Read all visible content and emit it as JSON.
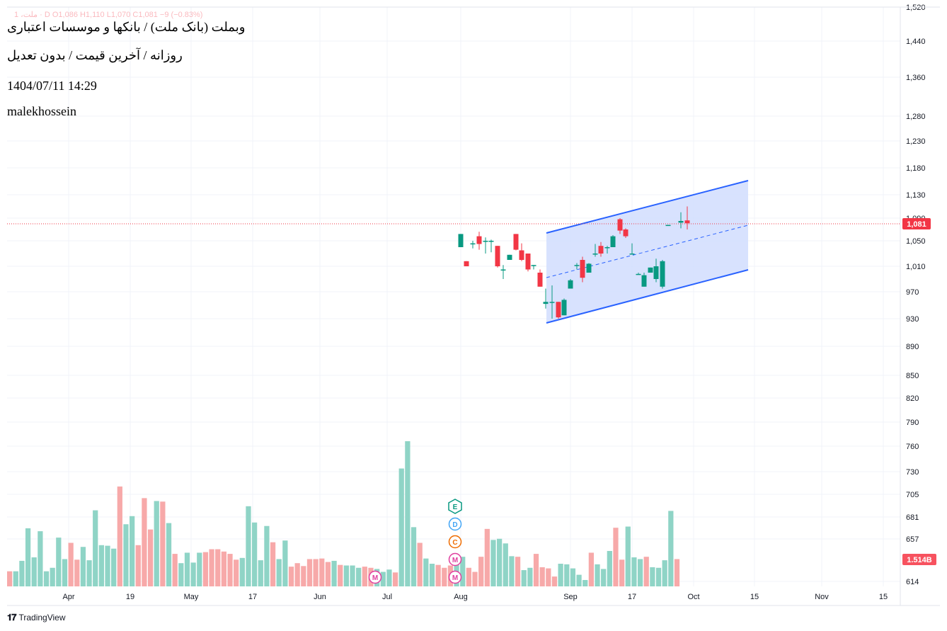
{
  "ohlc_line": "ملت، 1 · D  O1,086  H1,110  L1,070  C1,081  −9 (−0.83%)",
  "info": {
    "title": "وبملت (بانک ملت) / بانکها و موسسات اعتباری",
    "subtitle": "روزانه / آخرین قیمت / بدون تعدیل",
    "datetime": "1404/07/11 14:29",
    "author": "malekhossein"
  },
  "branding": {
    "logo": "TradingView"
  },
  "colors": {
    "up": "#089981",
    "down": "#f23645",
    "vol_up": "#8fd4c6",
    "vol_down": "#f7a9a9",
    "channel_line": "#2962ff",
    "channel_fill": "#d1ddfe",
    "grid": "#f0f3fa"
  },
  "chart_data": {
    "type": "candlestick",
    "x_tick_labels": [
      "Apr",
      "19",
      "May",
      "17",
      "Jun",
      "Jul",
      "Aug",
      "Sep",
      "17",
      "Oct",
      "15",
      "Nov",
      "15"
    ],
    "y_ticks": [
      "1,520",
      "1,440",
      "1,360",
      "1,280",
      "1,230",
      "1,180",
      "1,130",
      "1,090",
      "1,050",
      "1,010",
      "970",
      "930",
      "890",
      "850",
      "820",
      "790",
      "760",
      "730",
      "705",
      "681",
      "657",
      "614"
    ],
    "y_scale": "log",
    "last_price": 1081,
    "last_price_label": "1,081",
    "volume_label": "1.514B",
    "candles": [
      {
        "o": 1040,
        "h": 1062,
        "l": 1040,
        "c": 1062
      },
      {
        "o": 1018,
        "h": 1018,
        "l": 1010,
        "c": 1010
      },
      {
        "o": 1046,
        "h": 1050,
        "l": 1038,
        "c": 1046
      },
      {
        "o": 1058,
        "h": 1066,
        "l": 1036,
        "c": 1045
      },
      {
        "o": 1050,
        "h": 1056,
        "l": 1030,
        "c": 1050
      },
      {
        "o": 1050,
        "h": 1052,
        "l": 1032,
        "c": 1050
      },
      {
        "o": 1042,
        "h": 1042,
        "l": 1008,
        "c": 1010
      },
      {
        "o": 1005,
        "h": 1012,
        "l": 990,
        "c": 1005
      },
      {
        "o": 1020,
        "h": 1028,
        "l": 1020,
        "c": 1028
      },
      {
        "o": 1062,
        "h": 1062,
        "l": 1035,
        "c": 1036
      },
      {
        "o": 1035,
        "h": 1046,
        "l": 1018,
        "c": 1020
      },
      {
        "o": 1030,
        "h": 1030,
        "l": 1002,
        "c": 1005
      },
      {
        "o": 1012,
        "h": 1012,
        "l": 1005,
        "c": 1012
      },
      {
        "o": 1000,
        "h": 1005,
        "l": 978,
        "c": 978
      },
      {
        "o": 952,
        "h": 975,
        "l": 945,
        "c": 955
      },
      {
        "o": 955,
        "h": 980,
        "l": 930,
        "c": 955
      },
      {
        "o": 955,
        "h": 955,
        "l": 930,
        "c": 932
      },
      {
        "o": 935,
        "h": 960,
        "l": 935,
        "c": 958
      },
      {
        "o": 975,
        "h": 990,
        "l": 975,
        "c": 988
      },
      {
        "o": 1012,
        "h": 1015,
        "l": 1005,
        "c": 1012
      },
      {
        "o": 1020,
        "h": 1025,
        "l": 985,
        "c": 992
      },
      {
        "o": 1000,
        "h": 1015,
        "l": 1000,
        "c": 1014
      },
      {
        "o": 1030,
        "h": 1045,
        "l": 1025,
        "c": 1030
      },
      {
        "o": 1042,
        "h": 1048,
        "l": 1025,
        "c": 1030
      },
      {
        "o": 1040,
        "h": 1042,
        "l": 1030,
        "c": 1040
      },
      {
        "o": 1040,
        "h": 1060,
        "l": 1040,
        "c": 1058
      },
      {
        "o": 1088,
        "h": 1090,
        "l": 1062,
        "c": 1068
      },
      {
        "o": 1070,
        "h": 1072,
        "l": 1055,
        "c": 1058
      },
      {
        "o": 1030,
        "h": 1046,
        "l": 1030,
        "c": 1030
      },
      {
        "o": 998,
        "h": 1000,
        "l": 998,
        "c": 998
      },
      {
        "o": 978,
        "h": 1000,
        "l": 978,
        "c": 996
      },
      {
        "o": 1000,
        "h": 1008,
        "l": 1000,
        "c": 1008
      },
      {
        "o": 990,
        "h": 1022,
        "l": 985,
        "c": 1010
      },
      {
        "o": 978,
        "h": 1020,
        "l": 975,
        "c": 1018
      },
      {
        "o": 1078,
        "h": 1078,
        "l": 1077,
        "c": 1078
      },
      {
        "o": 1082,
        "h": 1100,
        "l": 1072,
        "c": 1085
      },
      {
        "o": 1086,
        "h": 1110,
        "l": 1070,
        "c": 1081
      }
    ],
    "volume": [
      {
        "v": 26,
        "up": false
      },
      {
        "v": 26,
        "up": true
      },
      {
        "v": 44,
        "up": true
      },
      {
        "v": 100,
        "up": true
      },
      {
        "v": 50,
        "up": true
      },
      {
        "v": 95,
        "up": true
      },
      {
        "v": 26,
        "up": true
      },
      {
        "v": 32,
        "up": true
      },
      {
        "v": 84,
        "up": true
      },
      {
        "v": 47,
        "up": true
      },
      {
        "v": 75,
        "up": false
      },
      {
        "v": 46,
        "up": false
      },
      {
        "v": 68,
        "up": true
      },
      {
        "v": 45,
        "up": true
      },
      {
        "v": 131,
        "up": true
      },
      {
        "v": 71,
        "up": true
      },
      {
        "v": 70,
        "up": true
      },
      {
        "v": 65,
        "up": true
      },
      {
        "v": 172,
        "up": false
      },
      {
        "v": 107,
        "up": true
      },
      {
        "v": 121,
        "up": true
      },
      {
        "v": 71,
        "up": false
      },
      {
        "v": 152,
        "up": false
      },
      {
        "v": 98,
        "up": false
      },
      {
        "v": 147,
        "up": true
      },
      {
        "v": 146,
        "up": false
      },
      {
        "v": 109,
        "up": true
      },
      {
        "v": 56,
        "up": false
      },
      {
        "v": 40,
        "up": true
      },
      {
        "v": 58,
        "up": true
      },
      {
        "v": 41,
        "up": true
      },
      {
        "v": 58,
        "up": true
      },
      {
        "v": 59,
        "up": false
      },
      {
        "v": 64,
        "up": false
      },
      {
        "v": 64,
        "up": false
      },
      {
        "v": 60,
        "up": false
      },
      {
        "v": 56,
        "up": false
      },
      {
        "v": 46,
        "up": false
      },
      {
        "v": 49,
        "up": true
      },
      {
        "v": 138,
        "up": true
      },
      {
        "v": 110,
        "up": true
      },
      {
        "v": 45,
        "up": true
      },
      {
        "v": 104,
        "up": true
      },
      {
        "v": 76,
        "up": false
      },
      {
        "v": 47,
        "up": true
      },
      {
        "v": 79,
        "up": true
      },
      {
        "v": 34,
        "up": false
      },
      {
        "v": 40,
        "up": false
      },
      {
        "v": 35,
        "up": false
      },
      {
        "v": 47,
        "up": false
      },
      {
        "v": 47,
        "up": false
      },
      {
        "v": 48,
        "up": false
      },
      {
        "v": 42,
        "up": false
      },
      {
        "v": 44,
        "up": true
      },
      {
        "v": 37,
        "up": false
      },
      {
        "v": 36,
        "up": true
      },
      {
        "v": 36,
        "up": true
      },
      {
        "v": 32,
        "up": true
      },
      {
        "v": 34,
        "up": false
      },
      {
        "v": 32,
        "up": false
      },
      {
        "v": 30,
        "up": true
      },
      {
        "v": 25,
        "up": true
      },
      {
        "v": 29,
        "up": true
      },
      {
        "v": 24,
        "up": false
      },
      {
        "v": 203,
        "up": true
      },
      {
        "v": 250,
        "up": true
      },
      {
        "v": 102,
        "up": true
      },
      {
        "v": 75,
        "up": false
      },
      {
        "v": 48,
        "up": true
      },
      {
        "v": 39,
        "up": true
      },
      {
        "v": 37,
        "up": false
      },
      {
        "v": 32,
        "up": false
      },
      {
        "v": 36,
        "up": false
      },
      {
        "v": 39,
        "up": true
      },
      {
        "v": 51,
        "up": true
      },
      {
        "v": 32,
        "up": false
      },
      {
        "v": 25,
        "up": false
      },
      {
        "v": 51,
        "up": false
      },
      {
        "v": 99,
        "up": false
      },
      {
        "v": 80,
        "up": true
      },
      {
        "v": 82,
        "up": true
      },
      {
        "v": 74,
        "up": true
      },
      {
        "v": 52,
        "up": true
      },
      {
        "v": 51,
        "up": false
      },
      {
        "v": 28,
        "up": true
      },
      {
        "v": 32,
        "up": true
      },
      {
        "v": 56,
        "up": false
      },
      {
        "v": 33,
        "up": false
      },
      {
        "v": 31,
        "up": false
      },
      {
        "v": 17,
        "up": false
      },
      {
        "v": 39,
        "up": true
      },
      {
        "v": 38,
        "up": true
      },
      {
        "v": 31,
        "up": true
      },
      {
        "v": 20,
        "up": true
      },
      {
        "v": 11,
        "up": true
      },
      {
        "v": 58,
        "up": false
      },
      {
        "v": 38,
        "up": true
      },
      {
        "v": 30,
        "up": true
      },
      {
        "v": 61,
        "up": true
      },
      {
        "v": 101,
        "up": false
      },
      {
        "v": 46,
        "up": false
      },
      {
        "v": 103,
        "up": true
      },
      {
        "v": 50,
        "up": true
      },
      {
        "v": 47,
        "up": true
      },
      {
        "v": 51,
        "up": false
      },
      {
        "v": 33,
        "up": true
      },
      {
        "v": 32,
        "up": true
      },
      {
        "v": 45,
        "up": true
      },
      {
        "v": 130,
        "up": true
      },
      {
        "v": 47,
        "up": false
      }
    ],
    "events": [
      "M",
      "E",
      "D",
      "C",
      "M",
      "M"
    ],
    "regression_channel": true,
    "grid": true
  }
}
